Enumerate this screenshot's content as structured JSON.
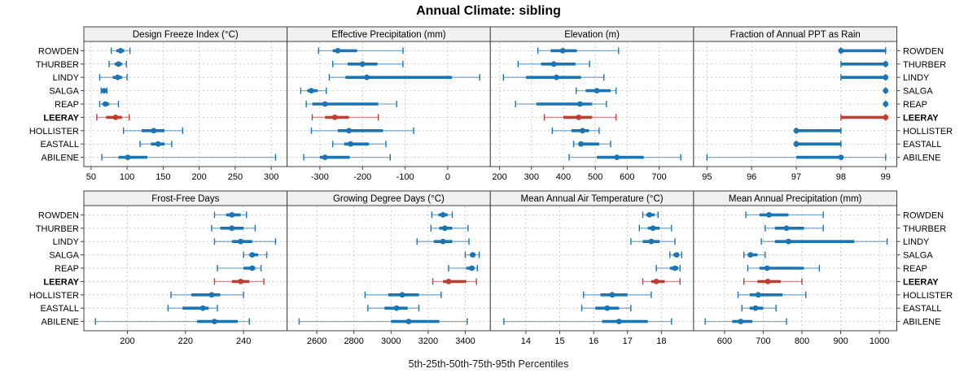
{
  "title": "Annual Climate: sibling",
  "caption": "5th-25th-50th-75th-95th Percentiles",
  "colors": {
    "series_blue": "#1B74B4",
    "highlight_red": "#C33B32",
    "strip_bg": "#F0F0F0",
    "panel_border": "#404040",
    "grid": "#CDCDCD",
    "text": "#000000"
  },
  "chart_data": {
    "type": "scatter",
    "subtype": "percentile-range-dotplot",
    "title": "Annual Climate: sibling",
    "caption": "5th-25th-50th-75th-95th Percentiles",
    "percentiles": [
      5,
      25,
      50,
      75,
      95
    ],
    "grid": true,
    "layout": "2 rows x 4 cols",
    "legend_position": "none",
    "categories": [
      "ROWDEN",
      "THURBER",
      "LINDY",
      "SALGA",
      "REAP",
      "LEERAY",
      "HOLLISTER",
      "EASTALL",
      "ABILENE"
    ],
    "highlight_category": "LEERAY",
    "panels": [
      {
        "title": "Design Freeze Index (°C)",
        "xlim": [
          40,
          322
        ],
        "ticks": [
          50,
          100,
          150,
          200,
          250,
          300
        ],
        "values": [
          [
            78,
            85,
            91,
            96,
            104
          ],
          [
            75,
            83,
            88,
            93,
            99
          ],
          [
            62,
            80,
            87,
            93,
            100
          ],
          [
            64,
            66,
            68,
            70,
            72
          ],
          [
            62,
            66,
            70,
            75,
            88
          ],
          [
            58,
            71,
            84,
            93,
            103
          ],
          [
            95,
            120,
            137,
            152,
            177
          ],
          [
            118,
            133,
            143,
            152,
            162
          ],
          [
            65,
            88,
            101,
            128,
            306
          ]
        ]
      },
      {
        "title": "Effective Precipitation (mm)",
        "xlim": [
          -377,
          100
        ],
        "ticks": [
          -300,
          -200,
          -100,
          0
        ],
        "values": [
          [
            -303,
            -270,
            -258,
            -213,
            -105
          ],
          [
            -270,
            -235,
            -200,
            -165,
            -105
          ],
          [
            -278,
            -240,
            -190,
            10,
            75
          ],
          [
            -345,
            -330,
            -320,
            -305,
            -285
          ],
          [
            -332,
            -318,
            -288,
            -163,
            -120
          ],
          [
            -318,
            -288,
            -265,
            -232,
            -163
          ],
          [
            -320,
            -258,
            -232,
            -152,
            -80
          ],
          [
            -270,
            -243,
            -228,
            -185,
            -145
          ],
          [
            -338,
            -300,
            -288,
            -230,
            -135
          ]
        ]
      },
      {
        "title": "Elevation (m)",
        "xlim": [
          171,
          808
        ],
        "ticks": [
          200,
          300,
          400,
          500,
          600,
          700
        ],
        "values": [
          [
            320,
            360,
            398,
            442,
            573
          ],
          [
            258,
            330,
            370,
            438,
            482
          ],
          [
            212,
            283,
            378,
            455,
            527
          ],
          [
            440,
            470,
            505,
            548,
            565
          ],
          [
            250,
            315,
            452,
            490,
            535
          ],
          [
            340,
            400,
            448,
            490,
            565
          ],
          [
            365,
            425,
            460,
            480,
            512
          ],
          [
            432,
            448,
            455,
            512,
            548
          ],
          [
            418,
            505,
            568,
            652,
            768
          ]
        ]
      },
      {
        "title": "Fraction of Annual PPT as Rain",
        "xlim": [
          94.7,
          99.25
        ],
        "ticks": [
          95,
          96,
          97,
          98,
          99
        ],
        "values": [
          [
            98,
            98,
            98,
            99,
            99
          ],
          [
            98,
            98,
            99,
            99,
            99
          ],
          [
            98,
            98,
            99,
            99,
            99
          ],
          [
            99,
            99,
            99,
            99,
            99
          ],
          [
            99,
            99,
            99,
            99,
            99
          ],
          [
            98,
            98,
            99,
            99,
            99
          ],
          [
            97,
            97,
            97,
            98,
            98
          ],
          [
            97,
            97,
            97,
            98,
            98
          ],
          [
            95,
            97,
            98,
            98,
            99
          ]
        ]
      },
      {
        "title": "Frost-Free Days",
        "xlim": [
          185,
          255
        ],
        "ticks": [
          200,
          220,
          240
        ],
        "values": [
          [
            230,
            234,
            236,
            239,
            241
          ],
          [
            229,
            232,
            236,
            240,
            244
          ],
          [
            230,
            236,
            239,
            243,
            251
          ],
          [
            240,
            242,
            243,
            245,
            248
          ],
          [
            231,
            240,
            243,
            244,
            246
          ],
          [
            230,
            236,
            239,
            242,
            247
          ],
          [
            215,
            222,
            229,
            232,
            240
          ],
          [
            214,
            219,
            226,
            228,
            231
          ],
          [
            189,
            224,
            230,
            238,
            242
          ]
        ]
      },
      {
        "title": "Growing Degree Days (°C)",
        "xlim": [
          2440,
          3535
        ],
        "ticks": [
          2600,
          2800,
          3000,
          3200,
          3400
        ],
        "values": [
          [
            3220,
            3255,
            3280,
            3305,
            3330
          ],
          [
            3215,
            3260,
            3290,
            3330,
            3415
          ],
          [
            3140,
            3230,
            3280,
            3330,
            3420
          ],
          [
            3400,
            3425,
            3440,
            3455,
            3475
          ],
          [
            3310,
            3405,
            3435,
            3450,
            3465
          ],
          [
            3225,
            3280,
            3310,
            3405,
            3460
          ],
          [
            2860,
            2985,
            3060,
            3150,
            3270
          ],
          [
            2875,
            2965,
            3030,
            3090,
            3150
          ],
          [
            2505,
            3000,
            3095,
            3260,
            3410
          ]
        ]
      },
      {
        "title": "Mean Annual Air Temperature (°C)",
        "xlim": [
          12.95,
          18.95
        ],
        "ticks": [
          14,
          15,
          16,
          17,
          18
        ],
        "values": [
          [
            17.45,
            17.55,
            17.65,
            17.8,
            17.9
          ],
          [
            17.35,
            17.6,
            17.75,
            17.95,
            18.3
          ],
          [
            17.1,
            17.45,
            17.7,
            17.95,
            18.4
          ],
          [
            18.25,
            18.35,
            18.45,
            18.5,
            18.6
          ],
          [
            17.85,
            18.25,
            18.4,
            18.5,
            18.55
          ],
          [
            17.45,
            17.7,
            17.85,
            18.1,
            18.55
          ],
          [
            15.7,
            16.2,
            16.55,
            17.0,
            17.7
          ],
          [
            15.65,
            16.05,
            16.4,
            16.75,
            17.1
          ],
          [
            13.35,
            16.25,
            16.75,
            17.6,
            18.3
          ]
        ]
      },
      {
        "title": "Mean Annual Precipitation (mm)",
        "xlim": [
          520,
          1045
        ],
        "ticks": [
          600,
          700,
          800,
          900,
          1000
        ],
        "values": [
          [
            655,
            690,
            715,
            765,
            855
          ],
          [
            705,
            730,
            760,
            805,
            855
          ],
          [
            695,
            730,
            765,
            935,
            1020
          ],
          [
            650,
            660,
            667,
            685,
            705
          ],
          [
            660,
            690,
            710,
            805,
            845
          ],
          [
            650,
            685,
            712,
            745,
            800
          ],
          [
            635,
            665,
            687,
            750,
            810
          ],
          [
            645,
            665,
            680,
            700,
            733
          ],
          [
            550,
            620,
            642,
            672,
            760
          ]
        ]
      }
    ]
  }
}
